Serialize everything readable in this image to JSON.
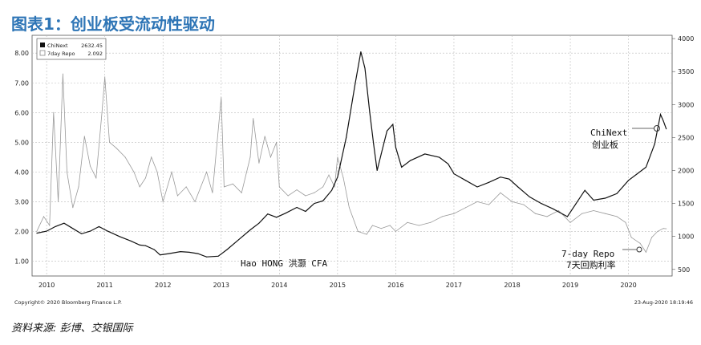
{
  "title": "图表1：创业板受流动性驱动",
  "source": "资料来源: 彭博、交银国际",
  "chart_data": {
    "type": "line",
    "x_start": 2009.75,
    "x_end": 2020.75,
    "x_ticks": [
      {
        "x": 2010.0,
        "label": "2010"
      },
      {
        "x": 2011.0,
        "label": "2011"
      },
      {
        "x": 2012.0,
        "label": "2012"
      },
      {
        "x": 2013.0,
        "label": "2013"
      },
      {
        "x": 2014.0,
        "label": "2014"
      },
      {
        "x": 2015.0,
        "label": "2015"
      },
      {
        "x": 2016.0,
        "label": "2016"
      },
      {
        "x": 2017.0,
        "label": "2017"
      },
      {
        "x": 2018.0,
        "label": "2018"
      },
      {
        "x": 2019.0,
        "label": "2019"
      },
      {
        "x": 2020.0,
        "label": "2020"
      }
    ],
    "y_left": {
      "range": [
        0.5,
        8.6
      ],
      "ticks": [
        "1.00",
        "2.00",
        "3.00",
        "4.00",
        "5.00",
        "6.00",
        "7.00",
        "8.00"
      ]
    },
    "y_right": {
      "range": [
        400,
        4050
      ],
      "ticks": [
        "500",
        "1000",
        "1500",
        "2000",
        "2500",
        "3000",
        "3500",
        "4000"
      ]
    },
    "legend": {
      "placement": "top-left",
      "items": [
        {
          "name": "ChiNext",
          "value": "2632.45",
          "swatch": "#111111"
        },
        {
          "name": "7day Repo",
          "value": "2.092",
          "swatch": "#999999"
        }
      ]
    },
    "series": [
      {
        "name": "ChiNext",
        "axis": "right",
        "color": "#111111",
        "points": [
          [
            2009.83,
            1050
          ],
          [
            2010.0,
            1080
          ],
          [
            2010.15,
            1150
          ],
          [
            2010.3,
            1200
          ],
          [
            2010.45,
            1120
          ],
          [
            2010.6,
            1040
          ],
          [
            2010.75,
            1080
          ],
          [
            2010.9,
            1150
          ],
          [
            2011.05,
            1080
          ],
          [
            2011.25,
            1000
          ],
          [
            2011.45,
            930
          ],
          [
            2011.6,
            870
          ],
          [
            2011.7,
            860
          ],
          [
            2011.85,
            800
          ],
          [
            2011.95,
            720
          ],
          [
            2012.1,
            740
          ],
          [
            2012.3,
            770
          ],
          [
            2012.45,
            760
          ],
          [
            2012.6,
            740
          ],
          [
            2012.75,
            690
          ],
          [
            2012.95,
            700
          ],
          [
            2013.1,
            800
          ],
          [
            2013.3,
            950
          ],
          [
            2013.5,
            1100
          ],
          [
            2013.65,
            1200
          ],
          [
            2013.8,
            1340
          ],
          [
            2013.95,
            1290
          ],
          [
            2014.1,
            1350
          ],
          [
            2014.3,
            1440
          ],
          [
            2014.45,
            1380
          ],
          [
            2014.6,
            1500
          ],
          [
            2014.75,
            1540
          ],
          [
            2014.9,
            1700
          ],
          [
            2015.0,
            1900
          ],
          [
            2015.15,
            2500
          ],
          [
            2015.3,
            3300
          ],
          [
            2015.4,
            3800
          ],
          [
            2015.47,
            3550
          ],
          [
            2015.55,
            2900
          ],
          [
            2015.62,
            2400
          ],
          [
            2015.68,
            2000
          ],
          [
            2015.75,
            2250
          ],
          [
            2015.85,
            2600
          ],
          [
            2015.95,
            2700
          ],
          [
            2016.0,
            2350
          ],
          [
            2016.1,
            2050
          ],
          [
            2016.25,
            2150
          ],
          [
            2016.5,
            2250
          ],
          [
            2016.75,
            2200
          ],
          [
            2016.9,
            2100
          ],
          [
            2017.0,
            1950
          ],
          [
            2017.2,
            1850
          ],
          [
            2017.4,
            1750
          ],
          [
            2017.6,
            1820
          ],
          [
            2017.8,
            1900
          ],
          [
            2017.95,
            1870
          ],
          [
            2018.1,
            1750
          ],
          [
            2018.3,
            1600
          ],
          [
            2018.5,
            1500
          ],
          [
            2018.7,
            1420
          ],
          [
            2018.95,
            1300
          ],
          [
            2019.1,
            1500
          ],
          [
            2019.25,
            1700
          ],
          [
            2019.4,
            1550
          ],
          [
            2019.6,
            1580
          ],
          [
            2019.8,
            1650
          ],
          [
            2020.0,
            1850
          ],
          [
            2020.15,
            1950
          ],
          [
            2020.3,
            2050
          ],
          [
            2020.45,
            2400
          ],
          [
            2020.55,
            2850
          ],
          [
            2020.6,
            2750
          ],
          [
            2020.65,
            2630
          ]
        ]
      },
      {
        "name": "7day Repo",
        "axis": "left",
        "color": "#999999",
        "points": [
          [
            2009.83,
            2.0
          ],
          [
            2009.95,
            2.5
          ],
          [
            2010.05,
            2.2
          ],
          [
            2010.12,
            6.0
          ],
          [
            2010.2,
            3.0
          ],
          [
            2010.28,
            7.3
          ],
          [
            2010.35,
            4.0
          ],
          [
            2010.45,
            2.8
          ],
          [
            2010.55,
            3.5
          ],
          [
            2010.65,
            5.2
          ],
          [
            2010.75,
            4.2
          ],
          [
            2010.85,
            3.8
          ],
          [
            2010.95,
            6.0
          ],
          [
            2011.0,
            7.2
          ],
          [
            2011.08,
            5.0
          ],
          [
            2011.2,
            4.8
          ],
          [
            2011.35,
            4.5
          ],
          [
            2011.5,
            4.0
          ],
          [
            2011.6,
            3.5
          ],
          [
            2011.7,
            3.8
          ],
          [
            2011.8,
            4.5
          ],
          [
            2011.9,
            4.0
          ],
          [
            2012.0,
            3.0
          ],
          [
            2012.15,
            4.0
          ],
          [
            2012.25,
            3.2
          ],
          [
            2012.4,
            3.5
          ],
          [
            2012.55,
            3.0
          ],
          [
            2012.75,
            4.0
          ],
          [
            2012.85,
            3.3
          ],
          [
            2013.0,
            6.5
          ],
          [
            2013.05,
            3.5
          ],
          [
            2013.2,
            3.6
          ],
          [
            2013.35,
            3.3
          ],
          [
            2013.5,
            4.5
          ],
          [
            2013.55,
            5.8
          ],
          [
            2013.65,
            4.3
          ],
          [
            2013.75,
            5.2
          ],
          [
            2013.85,
            4.5
          ],
          [
            2013.95,
            5.0
          ],
          [
            2014.0,
            3.5
          ],
          [
            2014.15,
            3.2
          ],
          [
            2014.3,
            3.4
          ],
          [
            2014.45,
            3.2
          ],
          [
            2014.6,
            3.3
          ],
          [
            2014.75,
            3.5
          ],
          [
            2014.85,
            3.9
          ],
          [
            2014.95,
            3.5
          ],
          [
            2015.0,
            4.5
          ],
          [
            2015.1,
            3.8
          ],
          [
            2015.2,
            2.8
          ],
          [
            2015.35,
            2.0
          ],
          [
            2015.5,
            1.9
          ],
          [
            2015.6,
            2.2
          ],
          [
            2015.75,
            2.1
          ],
          [
            2015.9,
            2.2
          ],
          [
            2016.0,
            2.0
          ],
          [
            2016.2,
            2.3
          ],
          [
            2016.4,
            2.2
          ],
          [
            2016.6,
            2.3
          ],
          [
            2016.8,
            2.5
          ],
          [
            2017.0,
            2.6
          ],
          [
            2017.2,
            2.8
          ],
          [
            2017.4,
            3.0
          ],
          [
            2017.6,
            2.9
          ],
          [
            2017.8,
            3.3
          ],
          [
            2018.0,
            3.0
          ],
          [
            2018.2,
            2.9
          ],
          [
            2018.4,
            2.6
          ],
          [
            2018.6,
            2.5
          ],
          [
            2018.8,
            2.7
          ],
          [
            2019.0,
            2.3
          ],
          [
            2019.2,
            2.6
          ],
          [
            2019.4,
            2.7
          ],
          [
            2019.6,
            2.6
          ],
          [
            2019.8,
            2.5
          ],
          [
            2019.95,
            2.3
          ],
          [
            2020.05,
            1.8
          ],
          [
            2020.2,
            1.6
          ],
          [
            2020.3,
            1.3
          ],
          [
            2020.4,
            1.8
          ],
          [
            2020.5,
            2.0
          ],
          [
            2020.6,
            2.1
          ],
          [
            2020.65,
            2.09
          ]
        ]
      }
    ],
    "annotations": {
      "chinext_en": "ChiNext",
      "chinext_cn": "创业板",
      "repo_en": "7-day Repo",
      "repo_cn": "7天回购利率",
      "watermark": "Hao HONG 洪灏 CFA"
    },
    "footer_left": "Copyright© 2020 Bloomberg Finance L.P.",
    "footer_right": "23-Aug-2020 18:19:46"
  }
}
